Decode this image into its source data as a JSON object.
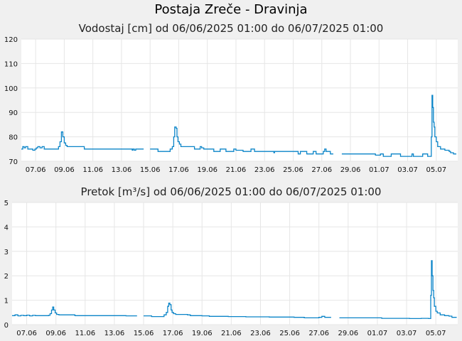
{
  "page": {
    "title": "Postaja Zreče - Dravinja"
  },
  "colors": {
    "line": "#0a84c8",
    "grid": "#e6e6e6",
    "plot_bg": "#ffffff",
    "page_bg": "#f0f0f0"
  },
  "chart_data": [
    {
      "type": "line",
      "title": "Vodostaj [cm] od 06/06/2025 01:00 do 06/07/2025 01:00",
      "xlabel": "",
      "ylabel": "",
      "ylim": [
        70,
        120
      ],
      "yticks": [
        "70",
        "80",
        "90",
        "100",
        "110",
        "120"
      ],
      "xlim": [
        0,
        30.5
      ],
      "xticks": [
        {
          "x": 1,
          "label": "07.06"
        },
        {
          "x": 3,
          "label": "09.06"
        },
        {
          "x": 5,
          "label": "11.06"
        },
        {
          "x": 7,
          "label": "13.06"
        },
        {
          "x": 9,
          "label": "15.06"
        },
        {
          "x": 11,
          "label": "17.06"
        },
        {
          "x": 13,
          "label": "19.06"
        },
        {
          "x": 15,
          "label": "21.06"
        },
        {
          "x": 17,
          "label": "23.06"
        },
        {
          "x": 19,
          "label": "25.06"
        },
        {
          "x": 21,
          "label": "27.06"
        },
        {
          "x": 23,
          "label": "29.06"
        },
        {
          "x": 25,
          "label": "01.07"
        },
        {
          "x": 27,
          "label": "03.07"
        },
        {
          "x": 29,
          "label": "05.07"
        }
      ],
      "grid": true,
      "series": [
        {
          "segments": [
            [
              [
                0,
                75
              ],
              [
                0.1,
                76
              ],
              [
                0.2,
                75.5
              ],
              [
                0.3,
                76
              ],
              [
                0.45,
                75
              ],
              [
                0.7,
                75
              ],
              [
                0.8,
                74.5
              ],
              [
                0.95,
                75
              ],
              [
                1.05,
                75.5
              ],
              [
                1.15,
                76
              ],
              [
                1.3,
                75.5
              ],
              [
                1.45,
                76
              ],
              [
                1.6,
                75
              ],
              [
                2.3,
                75
              ],
              [
                2.5,
                75
              ],
              [
                2.6,
                76
              ],
              [
                2.7,
                78
              ],
              [
                2.8,
                82
              ],
              [
                2.9,
                80
              ],
              [
                3.0,
                77.5
              ],
              [
                3.1,
                76.5
              ],
              [
                3.2,
                76
              ],
              [
                4.3,
                76
              ],
              [
                4.4,
                75
              ],
              [
                6.2,
                75
              ],
              [
                7.7,
                75
              ],
              [
                7.75,
                74.5
              ],
              [
                7.8,
                75
              ],
              [
                7.9,
                74.5
              ],
              [
                8.0,
                75
              ],
              [
                8.55,
                75
              ]
            ],
            [
              [
                9.0,
                75
              ],
              [
                9.5,
                75
              ],
              [
                9.55,
                74
              ],
              [
                10.3,
                74
              ],
              [
                10.4,
                75
              ],
              [
                10.55,
                76
              ],
              [
                10.65,
                80
              ],
              [
                10.72,
                84
              ],
              [
                10.82,
                83.5
              ],
              [
                10.88,
                80
              ],
              [
                10.95,
                78
              ],
              [
                11.05,
                77
              ],
              [
                11.15,
                76
              ],
              [
                12.0,
                76
              ],
              [
                12.1,
                75
              ],
              [
                12.4,
                75
              ],
              [
                12.5,
                76
              ],
              [
                12.6,
                75.5
              ],
              [
                12.75,
                75
              ],
              [
                13.4,
                75
              ],
              [
                13.45,
                74
              ],
              [
                13.8,
                74
              ],
              [
                13.9,
                75
              ],
              [
                14.2,
                75
              ],
              [
                14.3,
                74
              ],
              [
                14.8,
                74
              ],
              [
                14.85,
                75
              ],
              [
                15.0,
                74.5
              ],
              [
                15.5,
                74
              ],
              [
                16.0,
                74
              ],
              [
                16.05,
                75
              ],
              [
                16.3,
                74
              ],
              [
                17.6,
                74
              ],
              [
                17.65,
                73.5
              ],
              [
                17.7,
                74
              ],
              [
                19.3,
                74
              ],
              [
                19.35,
                73
              ],
              [
                19.5,
                74
              ],
              [
                19.9,
                74
              ],
              [
                19.95,
                73
              ],
              [
                20.3,
                73
              ],
              [
                20.4,
                74
              ],
              [
                20.6,
                73
              ],
              [
                21.0,
                73
              ],
              [
                21.1,
                74
              ],
              [
                21.2,
                75
              ],
              [
                21.3,
                74
              ],
              [
                21.5,
                74
              ],
              [
                21.6,
                73
              ],
              [
                21.8,
                73
              ]
            ],
            [
              [
                22.4,
                73
              ],
              [
                24.7,
                73
              ],
              [
                24.75,
                72.5
              ],
              [
                25.1,
                73
              ],
              [
                25.3,
                72
              ],
              [
                25.8,
                72
              ],
              [
                25.85,
                73
              ],
              [
                26.4,
                73
              ],
              [
                26.5,
                72
              ],
              [
                27.2,
                72
              ],
              [
                27.3,
                73
              ],
              [
                27.4,
                72
              ],
              [
                28.0,
                72
              ],
              [
                28.05,
                73
              ],
              [
                28.3,
                73
              ],
              [
                28.4,
                72
              ],
              [
                28.6,
                72
              ],
              [
                28.65,
                80
              ],
              [
                28.7,
                97
              ],
              [
                28.75,
                92
              ],
              [
                28.8,
                86
              ],
              [
                28.85,
                84
              ],
              [
                28.9,
                80
              ],
              [
                29.0,
                78
              ],
              [
                29.1,
                76
              ],
              [
                29.3,
                75
              ],
              [
                29.6,
                74.5
              ],
              [
                29.9,
                74
              ],
              [
                30.0,
                73.5
              ],
              [
                30.2,
                73
              ],
              [
                30.4,
                73
              ]
            ]
          ]
        }
      ]
    },
    {
      "type": "line",
      "title": "Pretok [m³/s] od 06/06/2025 01:00 do 06/07/2025 01:00",
      "xlabel": "",
      "ylabel": "",
      "ylim": [
        0,
        5
      ],
      "yticks": [
        "0",
        "1",
        "2",
        "3",
        "4",
        "5"
      ],
      "xlim": [
        0,
        30.5
      ],
      "xticks": [
        {
          "x": 1,
          "label": "07.06"
        },
        {
          "x": 3,
          "label": "09.06"
        },
        {
          "x": 5,
          "label": "11.06"
        },
        {
          "x": 7,
          "label": "13.06"
        },
        {
          "x": 9,
          "label": "15.06"
        },
        {
          "x": 11,
          "label": "17.06"
        },
        {
          "x": 13,
          "label": "19.06"
        },
        {
          "x": 15,
          "label": "21.06"
        },
        {
          "x": 17,
          "label": "23.06"
        },
        {
          "x": 19,
          "label": "25.06"
        },
        {
          "x": 21,
          "label": "27.06"
        },
        {
          "x": 23,
          "label": "29.06"
        },
        {
          "x": 25,
          "label": "01.07"
        },
        {
          "x": 27,
          "label": "03.07"
        },
        {
          "x": 29,
          "label": "05.07"
        }
      ],
      "grid": true,
      "series": [
        {
          "segments": [
            [
              [
                0,
                0.37
              ],
              [
                0.2,
                0.4
              ],
              [
                0.4,
                0.36
              ],
              [
                0.6,
                0.38
              ],
              [
                0.8,
                0.37
              ],
              [
                1.0,
                0.39
              ],
              [
                1.2,
                0.36
              ],
              [
                1.4,
                0.38
              ],
              [
                1.6,
                0.37
              ],
              [
                2.0,
                0.37
              ],
              [
                2.3,
                0.37
              ],
              [
                2.5,
                0.38
              ],
              [
                2.6,
                0.45
              ],
              [
                2.7,
                0.6
              ],
              [
                2.78,
                0.72
              ],
              [
                2.85,
                0.6
              ],
              [
                2.95,
                0.48
              ],
              [
                3.05,
                0.42
              ],
              [
                3.2,
                0.4
              ],
              [
                4.2,
                0.4
              ],
              [
                4.3,
                0.37
              ],
              [
                6.0,
                0.37
              ],
              [
                7.8,
                0.36
              ],
              [
                8.55,
                0.36
              ]
            ],
            [
              [
                9.0,
                0.36
              ],
              [
                9.5,
                0.36
              ],
              [
                9.55,
                0.33
              ],
              [
                10.3,
                0.33
              ],
              [
                10.4,
                0.4
              ],
              [
                10.55,
                0.5
              ],
              [
                10.65,
                0.75
              ],
              [
                10.72,
                0.88
              ],
              [
                10.8,
                0.82
              ],
              [
                10.88,
                0.6
              ],
              [
                10.95,
                0.5
              ],
              [
                11.05,
                0.45
              ],
              [
                11.2,
                0.42
              ],
              [
                12.0,
                0.4
              ],
              [
                12.2,
                0.37
              ],
              [
                13.0,
                0.36
              ],
              [
                13.5,
                0.34
              ],
              [
                14.3,
                0.34
              ],
              [
                14.8,
                0.33
              ],
              [
                16.0,
                0.32
              ],
              [
                17.6,
                0.31
              ],
              [
                19.3,
                0.3
              ],
              [
                20.0,
                0.28
              ],
              [
                20.6,
                0.28
              ],
              [
                21.0,
                0.3
              ],
              [
                21.2,
                0.34
              ],
              [
                21.4,
                0.3
              ],
              [
                21.8,
                0.28
              ]
            ],
            [
              [
                22.4,
                0.28
              ],
              [
                24.7,
                0.28
              ],
              [
                25.3,
                0.26
              ],
              [
                26.4,
                0.26
              ],
              [
                27.2,
                0.25
              ],
              [
                28.0,
                0.26
              ],
              [
                28.5,
                0.25
              ],
              [
                28.6,
                0.25
              ],
              [
                28.65,
                1.2
              ],
              [
                28.7,
                2.62
              ],
              [
                28.75,
                2.0
              ],
              [
                28.8,
                1.4
              ],
              [
                28.85,
                1.1
              ],
              [
                28.9,
                0.75
              ],
              [
                29.0,
                0.55
              ],
              [
                29.1,
                0.48
              ],
              [
                29.3,
                0.4
              ],
              [
                29.6,
                0.37
              ],
              [
                29.9,
                0.35
              ],
              [
                30.1,
                0.3
              ],
              [
                30.4,
                0.28
              ]
            ]
          ]
        }
      ]
    }
  ]
}
